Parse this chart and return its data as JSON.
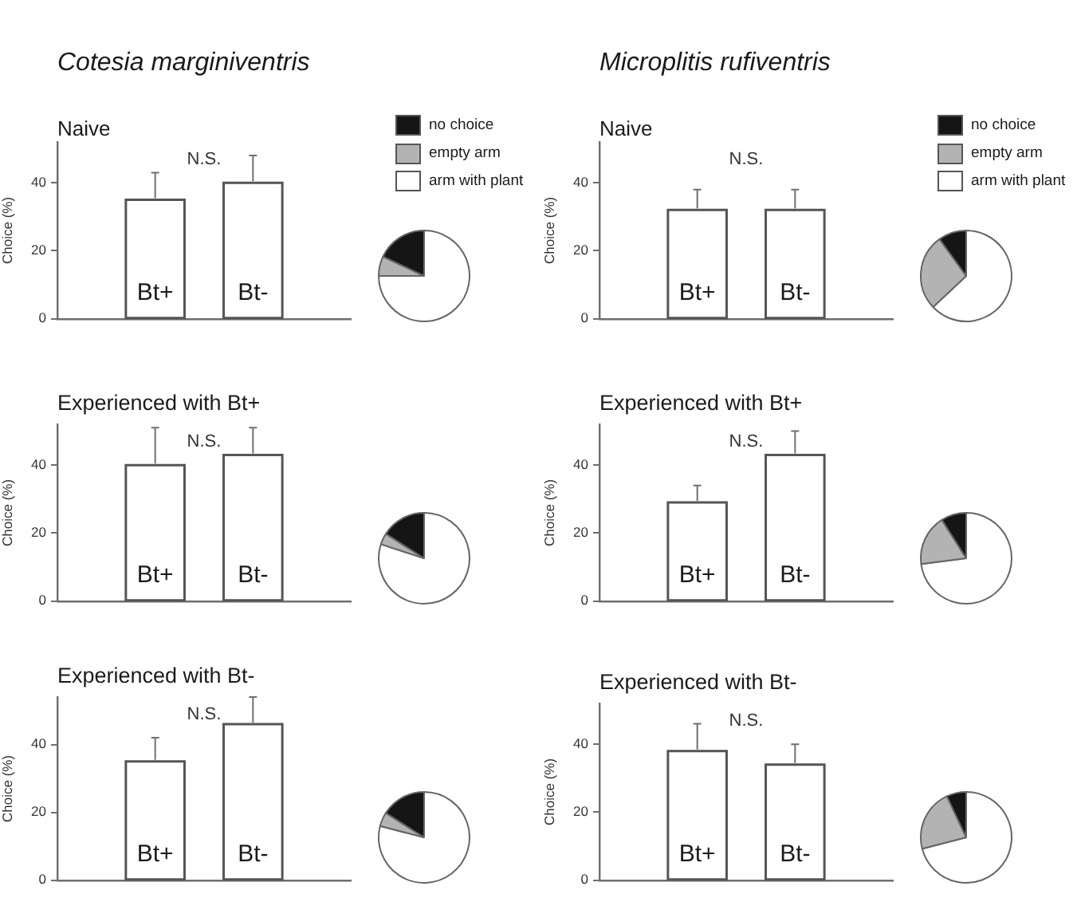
{
  "chart_data": [
    {
      "type": "bar",
      "title": "Cotesia marginiventris",
      "subtitle": "Naive",
      "ylabel": "Choice (%)",
      "categories": [
        "Bt+",
        "Bt-"
      ],
      "values": [
        35,
        40
      ],
      "errors": [
        [
          35,
          43
        ],
        [
          40,
          48
        ]
      ],
      "color": "#ffffff",
      "ylim": [
        0,
        52
      ],
      "yticks": [
        0,
        20,
        40
      ],
      "annotations": [
        "N.S."
      ]
    },
    {
      "type": "pie",
      "categories": [
        "no choice",
        "empty arm",
        "arm with plant"
      ],
      "values": [
        18,
        7,
        75
      ],
      "colors": [
        "#151515",
        "#b3b3b3",
        "#ffffff"
      ],
      "legend": "top"
    },
    {
      "type": "bar",
      "title": "Microplitis rufiventris",
      "subtitle": "Naive",
      "ylabel": "Choice (%)",
      "categories": [
        "Bt+",
        "Bt-"
      ],
      "values": [
        32,
        32
      ],
      "errors": [
        [
          32,
          38
        ],
        [
          32,
          38
        ]
      ],
      "color": "#ffffff",
      "ylim": [
        0,
        52
      ],
      "yticks": [
        0,
        20,
        40
      ],
      "annotations": [
        "N.S."
      ]
    },
    {
      "type": "pie",
      "categories": [
        "no choice",
        "empty arm",
        "arm with plant"
      ],
      "values": [
        10,
        27,
        63
      ],
      "colors": [
        "#151515",
        "#b3b3b3",
        "#ffffff"
      ],
      "legend": "top"
    },
    {
      "type": "bar",
      "title": "Experienced with Bt+",
      "ylabel": "Choice (%)",
      "categories": [
        "Bt+",
        "Bt-"
      ],
      "values": [
        40,
        43
      ],
      "errors": [
        [
          40,
          51
        ],
        [
          43,
          51
        ]
      ],
      "color": "#ffffff",
      "ylim": [
        0,
        52
      ],
      "yticks": [
        0,
        20,
        40
      ],
      "annotations": [
        "N.S."
      ]
    },
    {
      "type": "pie",
      "categories": [
        null,
        null,
        null
      ],
      "values": [
        16,
        4,
        80
      ],
      "colors": [
        "#151515",
        "#b3b3b3",
        "#ffffff"
      ]
    },
    {
      "type": "bar",
      "title": "Experienced with Bt+",
      "ylabel": "Choice (%)",
      "categories": [
        "Bt+",
        "Bt-"
      ],
      "values": [
        29,
        43
      ],
      "errors": [
        [
          29,
          34
        ],
        [
          43,
          50
        ]
      ],
      "color": "#ffffff",
      "ylim": [
        0,
        52
      ],
      "yticks": [
        0,
        20,
        40
      ],
      "annotations": [
        "N.S."
      ]
    },
    {
      "type": "pie",
      "categories": [
        null,
        null,
        null
      ],
      "values": [
        9,
        18,
        73
      ],
      "colors": [
        "#151515",
        "#b3b3b3",
        "#ffffff"
      ]
    },
    {
      "type": "bar",
      "title": "Experienced with Bt-",
      "ylabel": "Choice (%)",
      "categories": [
        "Bt+",
        "Bt-"
      ],
      "values": [
        35,
        46
      ],
      "errors": [
        [
          35,
          42
        ],
        [
          46,
          54
        ]
      ],
      "color": "#ffffff",
      "ylim": [
        0,
        54
      ],
      "yticks": [
        0,
        20,
        40
      ],
      "annotations": [
        "N.S."
      ]
    },
    {
      "type": "pie",
      "categories": [
        null,
        null,
        null
      ],
      "values": [
        16,
        5,
        79
      ],
      "colors": [
        "#151515",
        "#b3b3b3",
        "#ffffff"
      ]
    },
    {
      "type": "bar",
      "title": "Experienced with Bt-",
      "ylabel": "Choice (%)",
      "categories": [
        "Bt+",
        "Bt-"
      ],
      "values": [
        38,
        34
      ],
      "errors": [
        [
          38,
          46
        ],
        [
          34,
          40
        ]
      ],
      "color": "#ffffff",
      "ylim": [
        0,
        52
      ],
      "yticks": [
        0,
        20,
        40
      ],
      "annotations": [
        "N.S."
      ]
    },
    {
      "type": "pie",
      "categories": [
        null,
        null,
        null
      ],
      "values": [
        7,
        22,
        71
      ],
      "colors": [
        "#151515",
        "#b3b3b3",
        "#ffffff"
      ]
    }
  ]
}
